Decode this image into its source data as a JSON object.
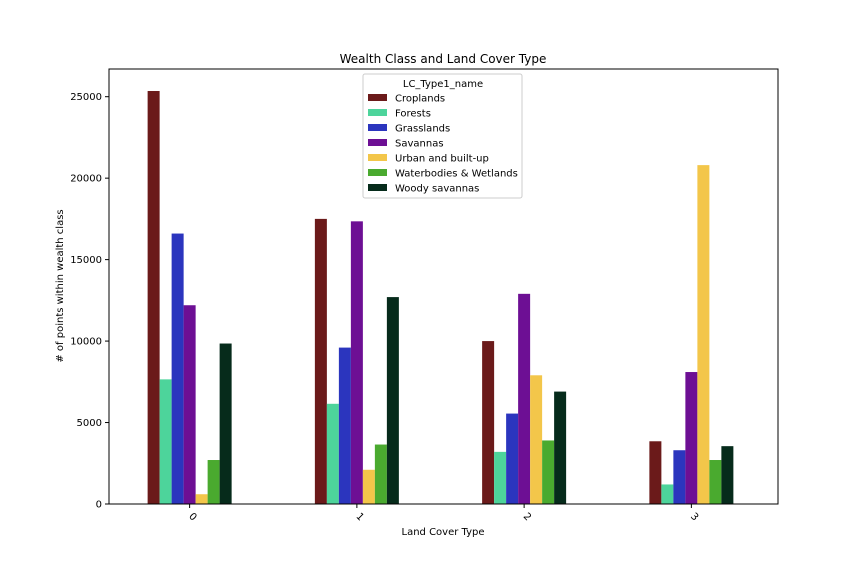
{
  "chart_data": {
    "type": "bar",
    "title": "Wealth Class and Land Cover Type",
    "xlabel": "Land Cover Type",
    "ylabel": "# of points within wealth class",
    "categories": [
      "0",
      "1",
      "2",
      "3"
    ],
    "ylim": [
      0,
      26700
    ],
    "yticks": [
      0,
      5000,
      10000,
      15000,
      20000,
      25000
    ],
    "grid": false,
    "legend": {
      "title": "LC_Type1_name",
      "placement": "top-center"
    },
    "series": [
      {
        "name": "Croplands",
        "color": "#6b1a1a",
        "values": [
          25350,
          17500,
          10000,
          3850
        ]
      },
      {
        "name": "Forests",
        "color": "#4dd49b",
        "values": [
          7650,
          6150,
          3200,
          1200
        ]
      },
      {
        "name": "Grasslands",
        "color": "#2b35be",
        "values": [
          16600,
          9600,
          5550,
          3300
        ]
      },
      {
        "name": "Savannas",
        "color": "#6d0f94",
        "values": [
          12200,
          17350,
          12900,
          8100
        ]
      },
      {
        "name": "Urban and built-up",
        "color": "#f3c64a",
        "values": [
          600,
          2100,
          7900,
          20800
        ]
      },
      {
        "name": "Waterbodies & Wetlands",
        "color": "#4aaa2f",
        "values": [
          2700,
          3650,
          3900,
          2700
        ]
      },
      {
        "name": "Woody savannas",
        "color": "#062b1b",
        "values": [
          9850,
          12700,
          6900,
          3550
        ]
      }
    ]
  }
}
